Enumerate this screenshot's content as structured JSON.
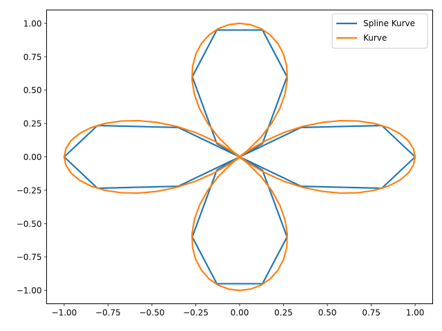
{
  "chart_data": {
    "type": "line",
    "title": "",
    "xlabel": "",
    "ylabel": "",
    "xlim": [
      -1.1,
      1.1
    ],
    "ylim": [
      -1.1,
      1.1
    ],
    "xticks": [
      -1.0,
      -0.75,
      -0.5,
      -0.25,
      0.0,
      0.25,
      0.5,
      0.75,
      1.0
    ],
    "xtick_labels": [
      "−1.00",
      "−0.75",
      "−0.50",
      "−0.25",
      "0.00",
      "0.25",
      "0.50",
      "0.75",
      "1.00"
    ],
    "yticks": [
      -1.0,
      -0.75,
      -0.5,
      -0.25,
      0.0,
      0.25,
      0.5,
      0.75,
      1.0
    ],
    "ytick_labels": [
      "−1.00",
      "−0.75",
      "−0.50",
      "−0.25",
      "0.00",
      "0.25",
      "0.50",
      "0.75",
      "1.00"
    ],
    "grid": false,
    "legend_position": "top-right",
    "series": [
      {
        "name": "Spline Kurve",
        "color": "#1f77b4",
        "x": [
          1.0,
          0.81,
          0.35,
          0.0,
          0.13,
          0.27,
          0.13,
          -0.13,
          -0.27,
          -0.13,
          0.0,
          -0.35,
          -0.81,
          -1.0,
          -0.81,
          -0.35,
          0.0,
          -0.13,
          -0.27,
          -0.13,
          0.13,
          0.27,
          0.13,
          0.0,
          0.35,
          0.81,
          1.0
        ],
        "y": [
          0.0,
          -0.235,
          -0.22,
          0.0,
          0.1,
          0.6,
          0.95,
          0.95,
          0.6,
          0.1,
          0.0,
          -0.22,
          -0.235,
          0.0,
          0.235,
          0.22,
          0.0,
          -0.1,
          -0.6,
          -0.95,
          -0.95,
          -0.6,
          -0.1,
          0.0,
          0.22,
          0.235,
          0.0
        ]
      },
      {
        "name": "Kurve",
        "color": "#ff7f0e",
        "fn": "r = cos(2θ), θ in [0, 2π]"
      }
    ]
  }
}
